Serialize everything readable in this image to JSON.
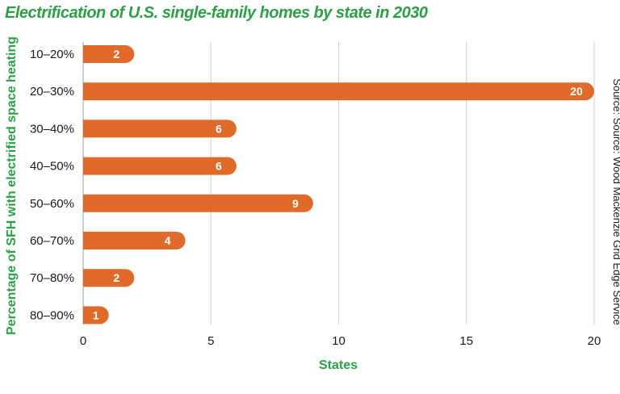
{
  "chart_data": {
    "type": "bar",
    "orientation": "horizontal",
    "title": "Electrification of U.S. single-family homes by state in 2030",
    "xlabel": "States",
    "ylabel": "Percentage of SFH with electrified space heating",
    "categories": [
      "10–20%",
      "20–30%",
      "30–40%",
      "40–50%",
      "50–60%",
      "60–70%",
      "70–80%",
      "80–90%"
    ],
    "values": [
      2,
      20,
      6,
      6,
      9,
      4,
      2,
      1
    ],
    "data_labels": [
      "2",
      "20",
      "6",
      "6",
      "9",
      "4",
      "2",
      "1"
    ],
    "xlim": [
      0,
      20
    ],
    "xticks": [
      0,
      5,
      10,
      15,
      20
    ],
    "xtick_labels": [
      "0",
      "5",
      "10",
      "15",
      "20"
    ],
    "grid": "vertical",
    "source": "Source: Source: Wood Mackenzie Grid Edge Service",
    "colors": {
      "bar": "#e06a2a",
      "title": "#2e9e47",
      "grid": "#cfcfcf"
    }
  }
}
